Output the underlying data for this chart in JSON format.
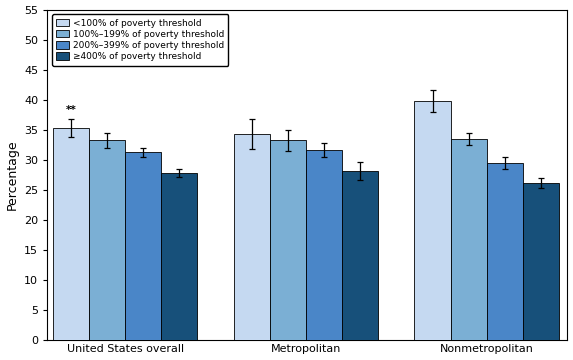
{
  "groups": [
    "United States overall",
    "Metropolitan",
    "Nonmetropolitan"
  ],
  "categories": [
    "<100% of poverty threshold",
    "100%–199% of poverty threshold",
    "200%–399% of poverty threshold",
    "≥400% of poverty threshold"
  ],
  "values": [
    [
      35.2,
      33.2,
      31.2,
      27.8
    ],
    [
      34.2,
      33.2,
      31.6,
      28.1
    ],
    [
      39.8,
      33.5,
      29.5,
      26.1
    ]
  ],
  "errors": [
    [
      1.5,
      1.2,
      0.8,
      0.7
    ],
    [
      2.5,
      1.8,
      1.2,
      1.5
    ],
    [
      1.8,
      1.0,
      1.0,
      0.8
    ]
  ],
  "colors": [
    "#c5d9f1",
    "#7bafd4",
    "#4a86c8",
    "#17507a"
  ],
  "bar_edge_color": "#000000",
  "ylabel": "Percentage",
  "ylim": [
    0,
    55
  ],
  "yticks": [
    0,
    5,
    10,
    15,
    20,
    25,
    30,
    35,
    40,
    45,
    50,
    55
  ],
  "legend_labels": [
    "<100% of poverty threshold",
    "100%–199% of poverty threshold",
    "200%–399% of poverty threshold",
    "≥400% of poverty threshold"
  ],
  "annotation_text": "**",
  "background_color": "#ffffff",
  "bar_width": 0.13,
  "group_centers": [
    0.28,
    0.93,
    1.58
  ],
  "xlim": [
    0.0,
    1.87
  ]
}
